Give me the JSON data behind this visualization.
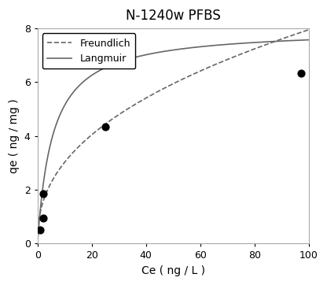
{
  "title": "N-1240w PFBS",
  "xlabel": "Ce ( ng / L )",
  "ylabel": "qe ( ng / mg )",
  "xlim": [
    0,
    100
  ],
  "ylim": [
    0,
    8
  ],
  "xticks": [
    0,
    20,
    40,
    60,
    80,
    100
  ],
  "yticks": [
    0,
    2,
    4,
    6,
    8
  ],
  "scatter_x": [
    1.0,
    2.0,
    2.2,
    25.0,
    97.0
  ],
  "scatter_y": [
    0.5,
    0.95,
    1.85,
    4.35,
    6.35
  ],
  "scatter_color": "black",
  "scatter_size": 40,
  "langmuir_qmax": 8.0,
  "langmuir_KL": 0.18,
  "freundlich_Kf": 1.15,
  "freundlich_n": 0.42,
  "line_color": "#666666",
  "legend_labels": [
    "Freundlich",
    "Langmuir"
  ],
  "background_color": "#ffffff",
  "title_fontsize": 12,
  "axis_label_fontsize": 10
}
